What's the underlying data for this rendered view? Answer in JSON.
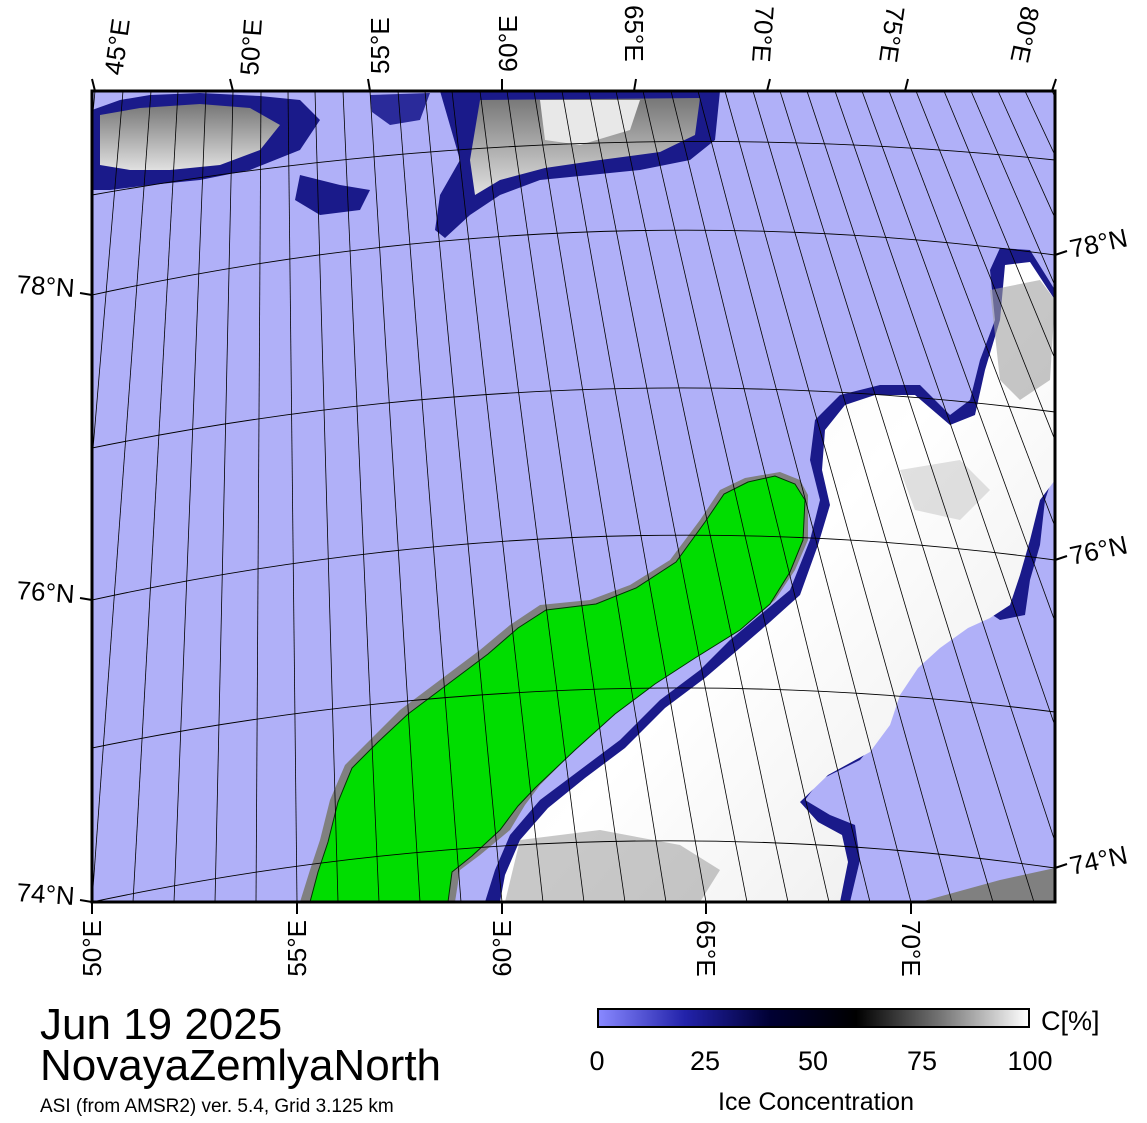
{
  "map": {
    "title_date": "Jun 19 2025",
    "title_region": "NovayaZemlyaNorth",
    "subtitle": "ASI (from AMSR2) ver. 5.4,  Grid 3.125 km",
    "colors": {
      "open_water": "#b0b0f8",
      "land": "#00dd00",
      "land_shadow": "#808080",
      "ice_low": "#1a1a8a",
      "ice_high": "#ffffff"
    },
    "top_lon_labels": [
      "45°E",
      "50°E",
      "55°E",
      "60°E",
      "65°E",
      "70°E",
      "75°E",
      "80°E"
    ],
    "bottom_lon_labels": [
      "50°E",
      "55°E",
      "60°E",
      "65°E",
      "70°E"
    ],
    "left_lat_labels": [
      "78°N",
      "76°N",
      "74°N"
    ],
    "right_lat_labels": [
      "78°N",
      "76°N",
      "74°N"
    ]
  },
  "colorbar": {
    "ticks": [
      "0",
      "25",
      "50",
      "75",
      "100"
    ],
    "unit": "C[%]",
    "label": "Ice Concentration",
    "stops": [
      "#8888ff",
      "#2222aa",
      "#000033",
      "#000000",
      "#777777",
      "#ffffff"
    ]
  }
}
